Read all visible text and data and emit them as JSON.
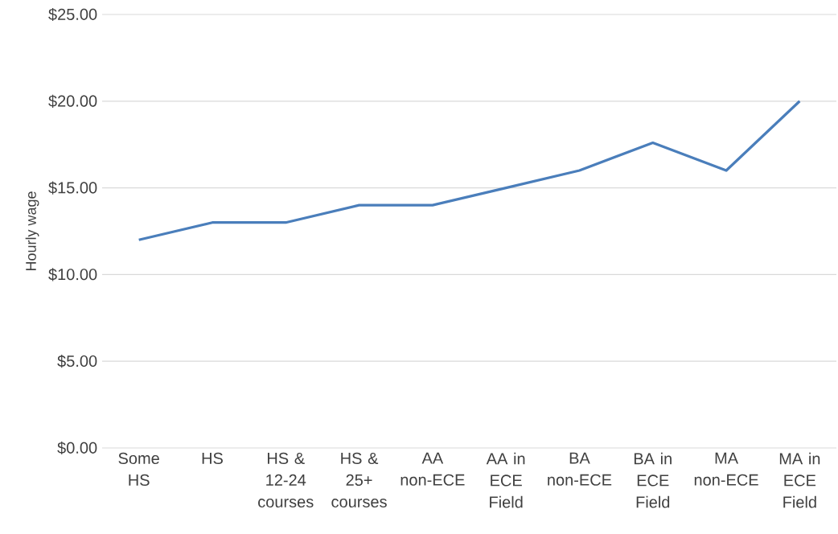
{
  "chart_data": {
    "type": "line",
    "ylabel": "Hourly wage",
    "categories": [
      "Some HS",
      "HS",
      "HS & 12-24 courses",
      "HS & 25+ courses",
      "AA non-ECE",
      "AA in ECE Field",
      "BA non-ECE",
      "BA in ECE Field",
      "MA non-ECE",
      "MA in ECE Field"
    ],
    "series": [
      {
        "color": "#4a7ebb",
        "values": [
          12,
          13,
          13,
          14,
          14,
          15,
          16,
          17.6,
          16,
          20
        ]
      }
    ],
    "ylim": [
      0,
      25
    ],
    "yticks": [
      {
        "value": 0,
        "label": "$0.00"
      },
      {
        "value": 5,
        "label": "$5.00"
      },
      {
        "value": 10,
        "label": "$10.00"
      },
      {
        "value": 15,
        "label": "$15.00"
      },
      {
        "value": 20,
        "label": "$20.00"
      },
      {
        "value": 25,
        "label": "$25.00"
      }
    ],
    "grid": "y",
    "marker": "none",
    "line_style": "solid"
  }
}
